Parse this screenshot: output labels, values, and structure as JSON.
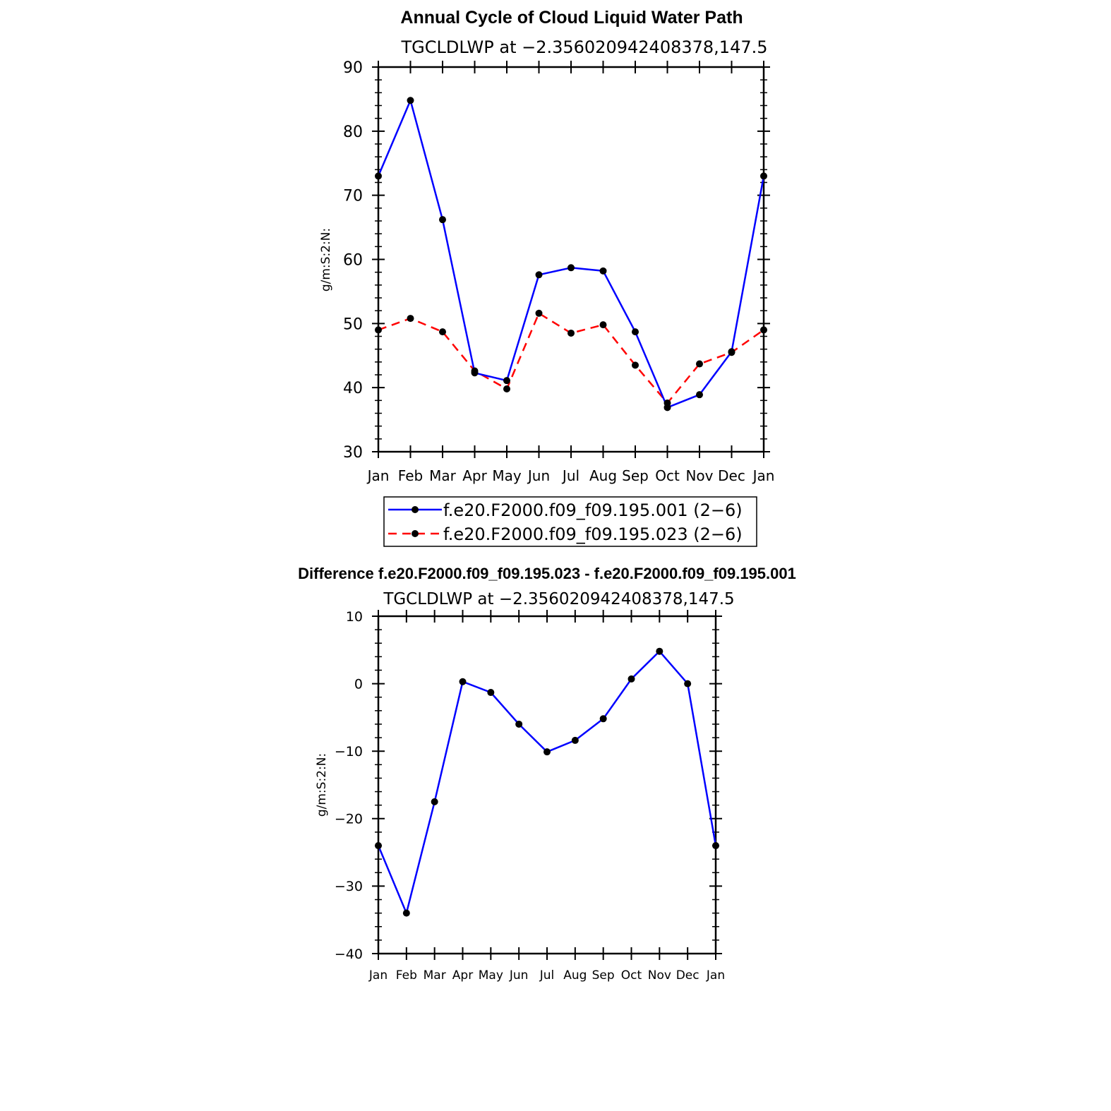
{
  "chart_data": [
    {
      "type": "line",
      "title": "Annual Cycle of Cloud Liquid Water Path",
      "subtitle": "TGCLDLWP at −2.356020942408378,147.5",
      "xlabel": "",
      "ylabel": "g/m:S:2:N:",
      "categories": [
        "Jan",
        "Feb",
        "Mar",
        "Apr",
        "May",
        "Jun",
        "Jul",
        "Aug",
        "Sep",
        "Oct",
        "Nov",
        "Dec",
        "Jan"
      ],
      "ylim": [
        30,
        90
      ],
      "yticks": [
        "30",
        "40",
        "50",
        "60",
        "70",
        "80",
        "90"
      ],
      "legend_position": "bottom",
      "series": [
        {
          "name": "f.e20.F2000.f09_f09.195.001 (2−6)",
          "color": "#0000ff",
          "style": "solid",
          "values": [
            73.0,
            84.8,
            66.2,
            42.3,
            41.1,
            57.6,
            58.7,
            58.2,
            48.7,
            36.9,
            38.9,
            45.6,
            73.0
          ]
        },
        {
          "name": "f.e20.F2000.f09_f09.195.023 (2−6)",
          "color": "#ff0000",
          "style": "dashed",
          "values": [
            49.0,
            50.8,
            48.7,
            42.6,
            39.8,
            51.6,
            48.5,
            49.8,
            43.5,
            37.6,
            43.7,
            45.5,
            49.0
          ]
        }
      ]
    },
    {
      "type": "line",
      "title": "Difference f.e20.F2000.f09_f09.195.023 - f.e20.F2000.f09_f09.195.001",
      "subtitle": "TGCLDLWP at −2.356020942408378,147.5",
      "xlabel": "",
      "ylabel": "g/m:S:2:N:",
      "categories": [
        "Jan",
        "Feb",
        "Mar",
        "Apr",
        "May",
        "Jun",
        "Jul",
        "Aug",
        "Sep",
        "Oct",
        "Nov",
        "Dec",
        "Jan"
      ],
      "ylim": [
        -40,
        10
      ],
      "yticks": [
        "−40",
        "−30",
        "−20",
        "−10",
        "0",
        "10"
      ],
      "series": [
        {
          "color": "#0000ff",
          "style": "solid",
          "values": [
            -24.0,
            -34.0,
            -17.5,
            0.3,
            -1.3,
            -6.0,
            -10.1,
            -8.4,
            -5.2,
            0.7,
            4.8,
            0.0,
            -24.0
          ]
        }
      ]
    }
  ]
}
